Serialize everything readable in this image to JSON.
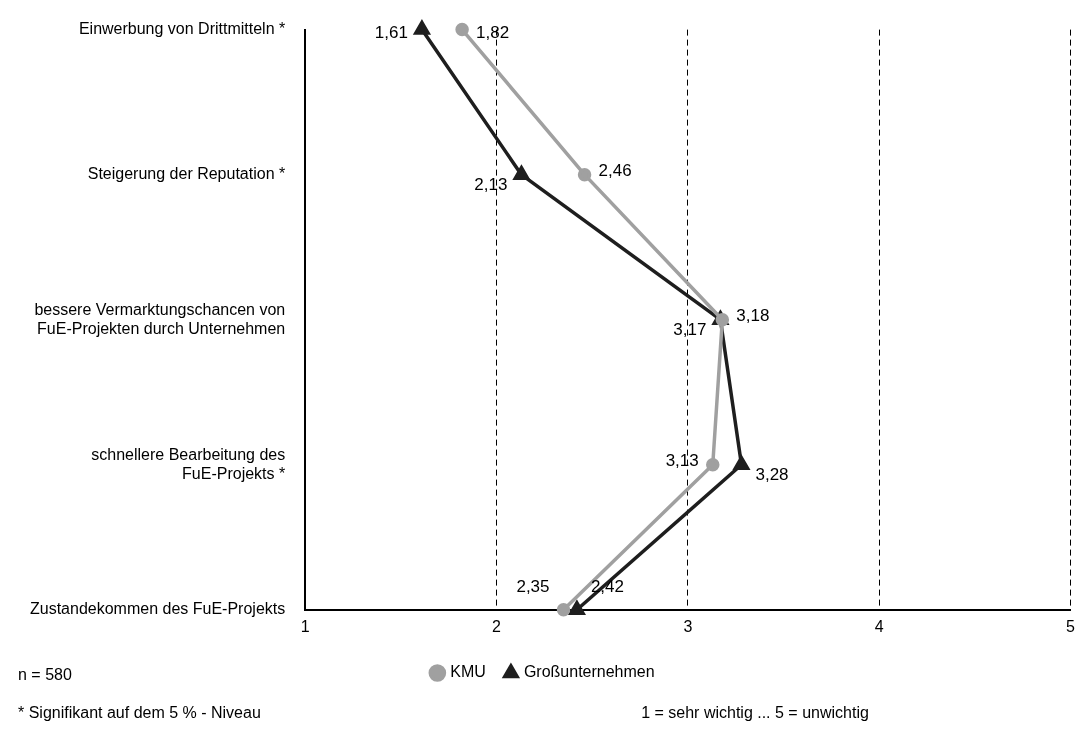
{
  "chart_data": {
    "type": "line",
    "orientation": "horizontal",
    "categories": [
      "Einwerbung von Drittmitteln *",
      "Steigerung der Reputation *",
      "bessere Vermarktungschancen von FuE-Projekten durch Unternehmen",
      "schnellere Bearbeitung des FuE-Projekts *",
      "Zustandekommen des FuE-Projekts"
    ],
    "series": [
      {
        "name": "KMU",
        "color": "#a0a0a0",
        "marker": "circle",
        "values": [
          1.82,
          2.46,
          3.18,
          3.13,
          2.35
        ],
        "value_labels": [
          "1,82",
          "2,46",
          "3,18",
          "3,13",
          "2,35"
        ]
      },
      {
        "name": "Großunternehmen",
        "color": "#1e1e1e",
        "marker": "triangle",
        "values": [
          1.61,
          2.13,
          3.17,
          3.28,
          2.42
        ],
        "value_labels": [
          "1,61",
          "2,13",
          "3,17",
          "3,28",
          "2,42"
        ]
      }
    ],
    "xlim": [
      1,
      5
    ],
    "xticks": [
      1,
      2,
      3,
      4,
      5
    ],
    "grid": "x",
    "legend": "bottom",
    "annotations": [
      "n = 580",
      "* Signifikant auf dem 5 % - Niveau",
      "1 = sehr wichtig ... 5 = unwichtig"
    ]
  }
}
